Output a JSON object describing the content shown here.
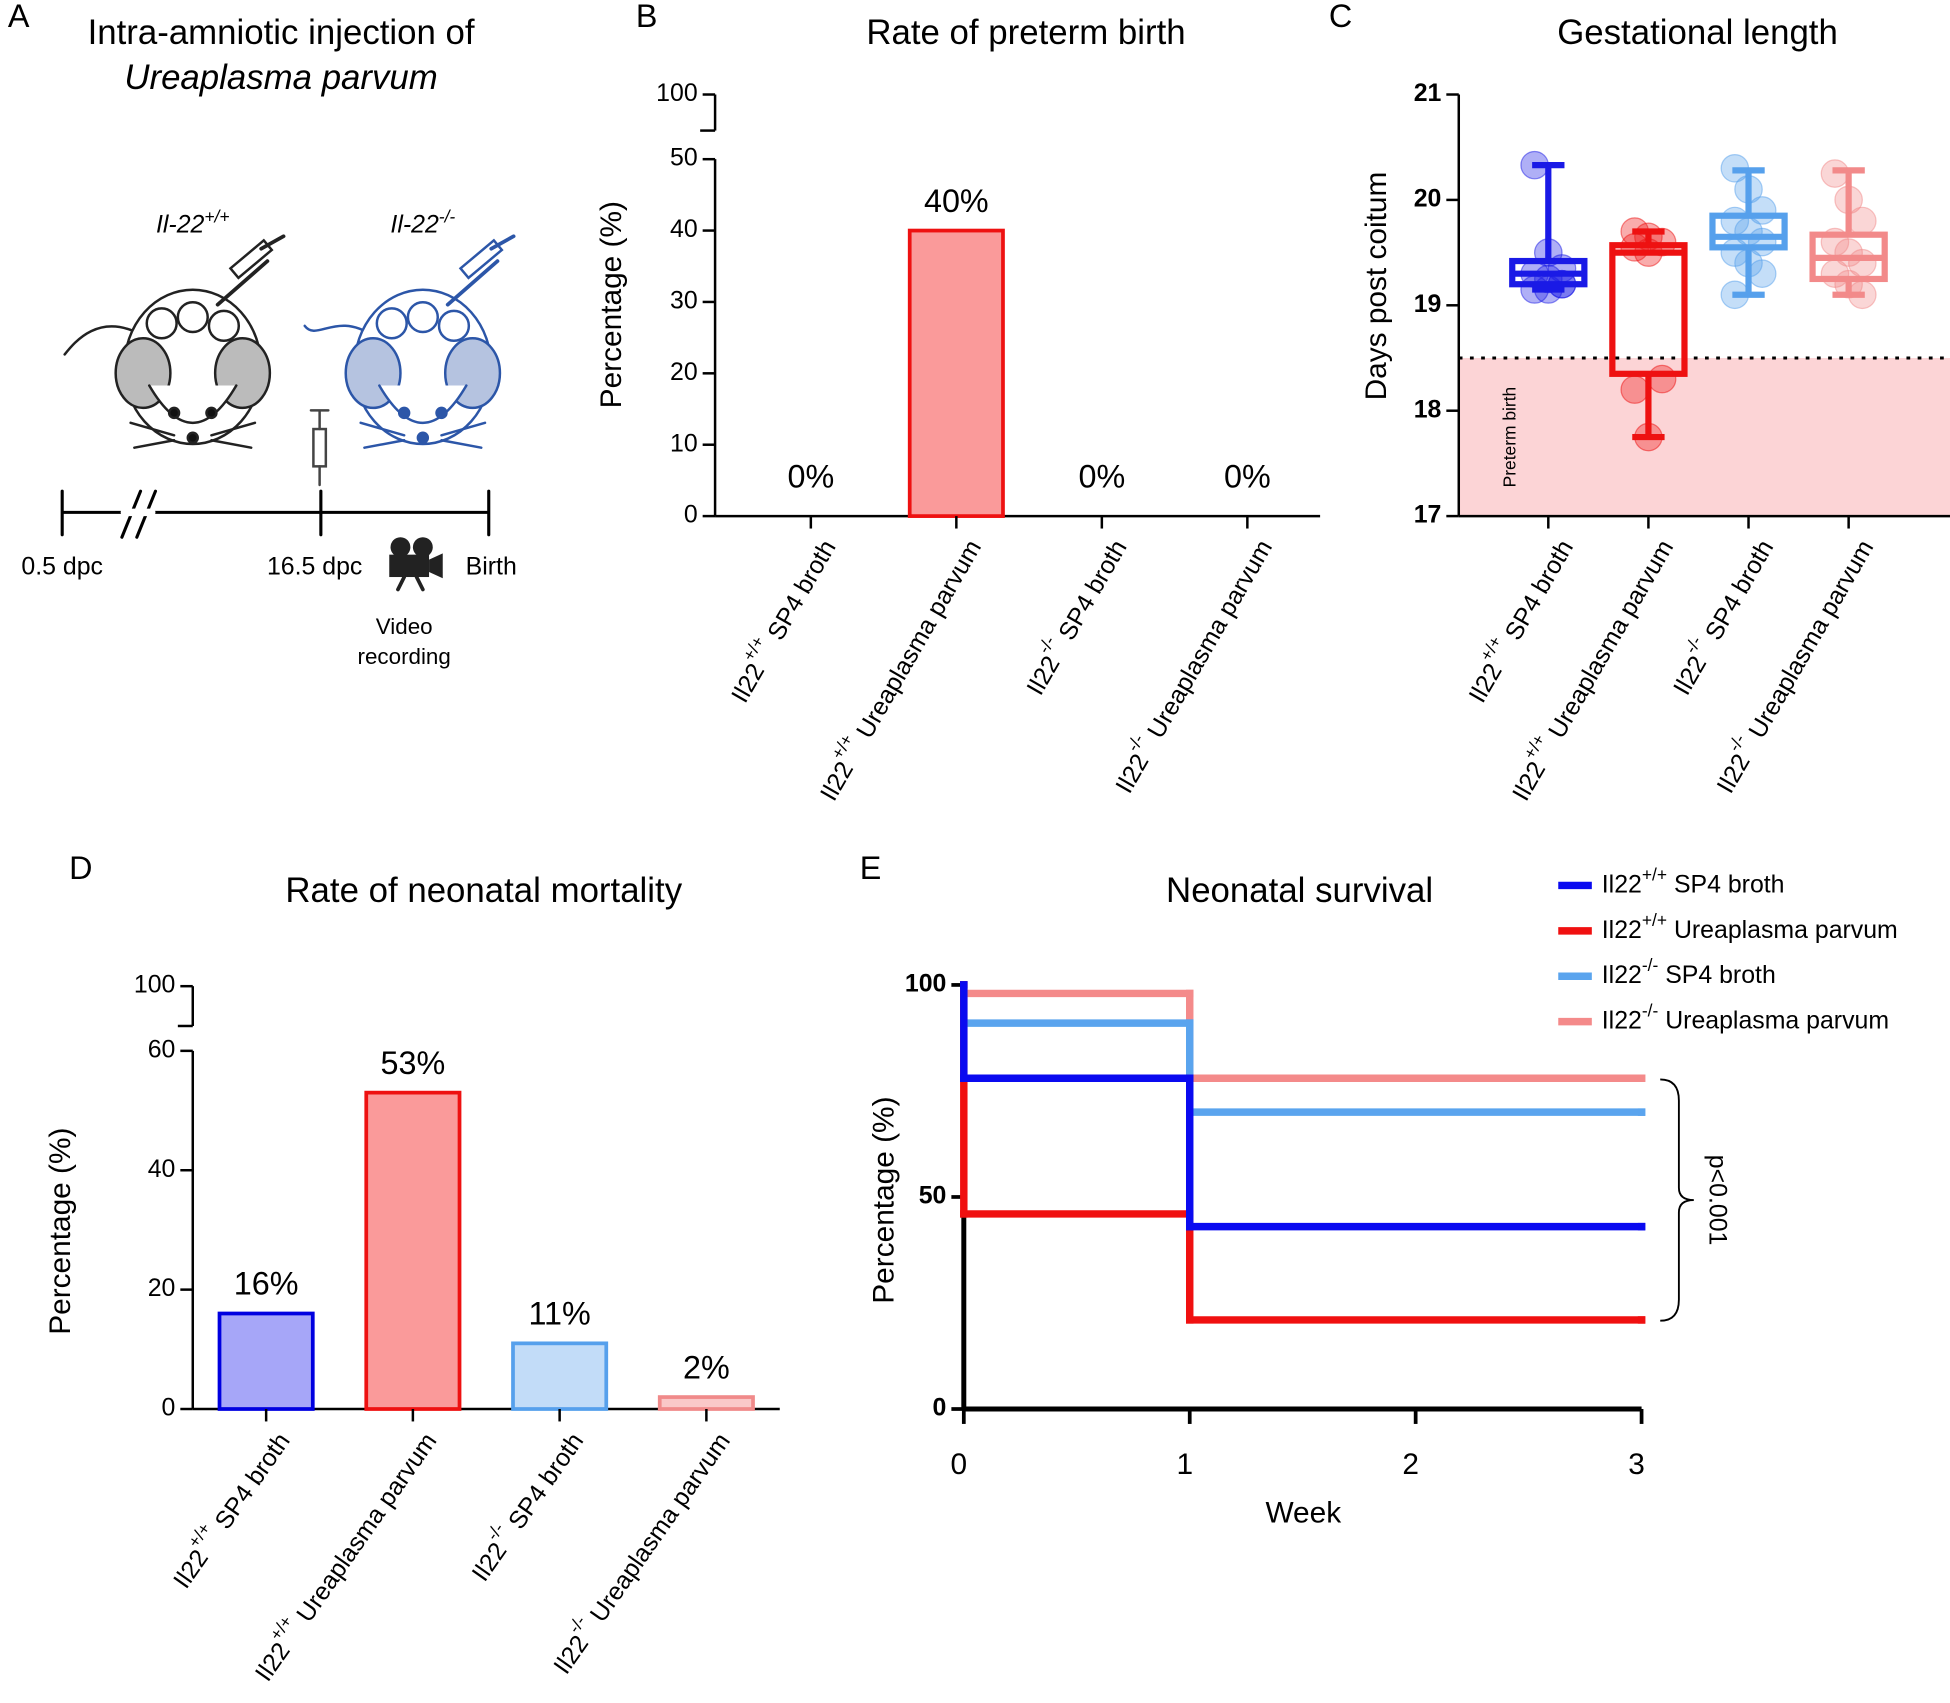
{
  "panel_labels": [
    "A",
    "B",
    "C",
    "D",
    "E"
  ],
  "panel_a": {
    "title_lines": [
      "Intra-amniotic injection of",
      "Ureaplasma parvum"
    ],
    "mice": [
      "Il-22+/+",
      "Il-22-/-"
    ],
    "timeline": [
      "0.5 dpc",
      "16.5 dpc",
      "Birth"
    ],
    "camera_label": [
      "Video",
      "recording"
    ]
  },
  "chart_data": [
    {
      "type": "bar",
      "title": "Rate of preterm birth",
      "ylabel": "Percentage (%)",
      "categories": [
        "Il22+/+ SP4 broth",
        "Il22+/+ Ureaplasma parvum",
        "Il22-/- SP4 broth",
        "Il22-/- Ureaplasma parvum"
      ],
      "values": [
        0,
        40,
        0,
        0
      ],
      "value_labels": [
        "0%",
        "40%",
        "0%",
        "0%"
      ],
      "colors": [
        "#a6a6f8",
        "#fa9a9a",
        "#c2dcf8",
        "#fac8c8"
      ],
      "edge_colors": [
        "#0000e0",
        "#ee1111",
        "#56a0ec",
        "#f08a8a"
      ],
      "ylim": [
        0,
        100
      ],
      "y_break": [
        50,
        100
      ],
      "yticks": [
        0,
        10,
        20,
        30,
        40,
        50,
        100
      ]
    },
    {
      "type": "box",
      "title": "Gestational length",
      "ylabel": "Days post coitum",
      "categories": [
        "Il22+/+ SP4 broth",
        "Il22+/+ Ureaplasma parvum",
        "Il22-/- SP4 broth",
        "Il22-/- Ureaplasma parvum"
      ],
      "series": [
        {
          "color": "#1a1ae6",
          "whisker_low": 19.15,
          "q1": 19.2,
          "median": 19.3,
          "q3": 19.42,
          "whisker_high": 20.33,
          "points": [
            20.33,
            19.5,
            19.35,
            19.3,
            19.25,
            19.2,
            19.15,
            19.15,
            19.2
          ]
        },
        {
          "color": "#ee1111",
          "whisker_low": 17.75,
          "q1": 18.35,
          "median": 19.5,
          "q3": 19.57,
          "whisker_high": 19.7,
          "points": [
            19.7,
            19.65,
            19.6,
            19.55,
            19.5,
            18.3,
            18.2,
            17.75
          ]
        },
        {
          "color": "#56a0ec",
          "whisker_low": 19.1,
          "q1": 19.55,
          "median": 19.65,
          "q3": 19.85,
          "whisker_high": 20.28,
          "points": [
            20.3,
            20.1,
            19.9,
            19.8,
            19.7,
            19.6,
            19.5,
            19.4,
            19.3,
            19.1
          ]
        },
        {
          "color": "#f28a8a",
          "whisker_low": 19.1,
          "q1": 19.25,
          "median": 19.45,
          "q3": 19.67,
          "whisker_high": 20.28,
          "points": [
            20.25,
            20.0,
            19.8,
            19.6,
            19.5,
            19.4,
            19.3,
            19.2,
            19.1
          ]
        }
      ],
      "threshold": 18.5,
      "shade_label": "Preterm birth",
      "shade_color": "#fcd4d6",
      "ylim": [
        17,
        21
      ],
      "yticks": [
        17,
        18,
        19,
        20,
        21
      ]
    },
    {
      "type": "bar",
      "title": "Rate of neonatal mortality",
      "ylabel": "Percentage (%)",
      "categories": [
        "Il22+/+ SP4 broth",
        "Il22+/+ Ureaplasma parvum",
        "Il22-/- SP4 broth",
        "Il22-/- Ureaplasma parvum"
      ],
      "values": [
        16,
        53,
        11,
        2
      ],
      "value_labels": [
        "16%",
        "53%",
        "11%",
        "2%"
      ],
      "colors": [
        "#a6a6f8",
        "#fa9a9a",
        "#c2dcf8",
        "#fac8c8"
      ],
      "edge_colors": [
        "#0000e0",
        "#ee1111",
        "#56a0ec",
        "#f08a8a"
      ],
      "ylim": [
        0,
        100
      ],
      "y_break": [
        60,
        100
      ],
      "yticks": [
        0,
        20,
        40,
        60,
        100
      ]
    },
    {
      "type": "step",
      "title": "Neonatal survival",
      "xlabel": "Week",
      "ylabel": "Percentage (%)",
      "x": [
        0,
        0,
        1,
        3
      ],
      "series": [
        {
          "name": "Il22+/+ SP4 broth",
          "color": "#0a0af0",
          "values": [
            100,
            78,
            43,
            43
          ]
        },
        {
          "name": "Il22+/+ Ureaplasma parvum",
          "color": "#f01010",
          "values": [
            100,
            46,
            21,
            21
          ]
        },
        {
          "name": "Il22-/- SP4 broth",
          "color": "#5aa4ee",
          "values": [
            100,
            91,
            70,
            70
          ]
        },
        {
          "name": "Il22-/- Ureaplasma parvum",
          "color": "#f48a8a",
          "values": [
            100,
            98,
            78,
            78
          ]
        }
      ],
      "annotation": "p<0.001",
      "xlim": [
        0,
        3
      ],
      "xticks": [
        0,
        1,
        2,
        3
      ],
      "ylim": [
        0,
        100
      ],
      "yticks": [
        0,
        50,
        100
      ],
      "legend": "upper right"
    }
  ]
}
